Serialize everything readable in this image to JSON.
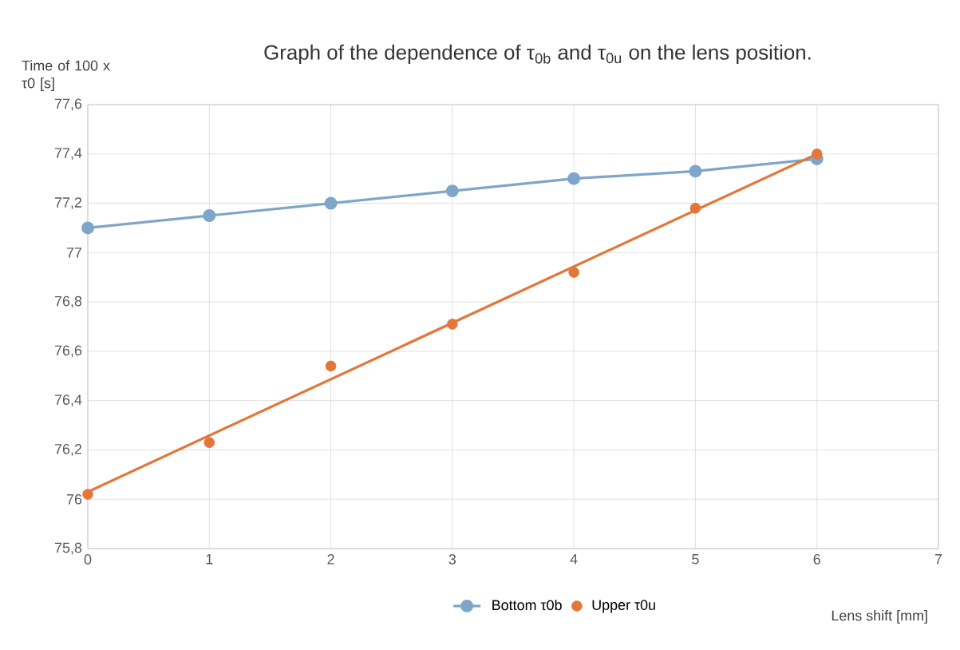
{
  "chart_data": {
    "type": "line",
    "title": "Graph of the dependence of τ$_{0b}$ and τ$_{0u}$ on the lens position.",
    "xlabel": "Lens shift [mm]",
    "ylabel": "Time of 100 x τ0 [s]",
    "x": [
      0,
      1,
      2,
      3,
      4,
      5,
      6
    ],
    "series": [
      {
        "name": "Bottom τ0b",
        "color": "#7ea6c8",
        "values": [
          77.1,
          77.15,
          77.2,
          77.25,
          77.3,
          77.33,
          77.38
        ]
      },
      {
        "name": "Upper τ0u",
        "color": "#e2773a",
        "type": "scatter",
        "values": [
          76.02,
          76.23,
          76.54,
          76.71,
          76.92,
          77.18,
          77.4
        ]
      },
      {
        "color": "#e2773a",
        "type": "line",
        "marker": "none",
        "x": [
          0,
          6
        ],
        "values": [
          76.03,
          77.4
        ]
      }
    ],
    "xlim": [
      0,
      7
    ],
    "xticks": [
      0,
      1,
      2,
      3,
      4,
      5,
      6,
      7
    ],
    "ylim": [
      75.8,
      77.6
    ],
    "yticks": [
      {
        "value": 75.8,
        "label": "75,8"
      },
      {
        "value": 76,
        "label": "76"
      },
      {
        "value": 76.2,
        "label": "76,2"
      },
      {
        "value": 76.4,
        "label": "76,4"
      },
      {
        "value": 76.6,
        "label": "76,6"
      },
      {
        "value": 76.8,
        "label": "76,8"
      },
      {
        "value": 77,
        "label": "77"
      },
      {
        "value": 77.2,
        "label": "77,2"
      },
      {
        "value": 77.4,
        "label": "77,4"
      },
      {
        "value": 77.6,
        "label": "77,6"
      }
    ],
    "grid": true,
    "legend": "bottom",
    "marker": "circle"
  }
}
